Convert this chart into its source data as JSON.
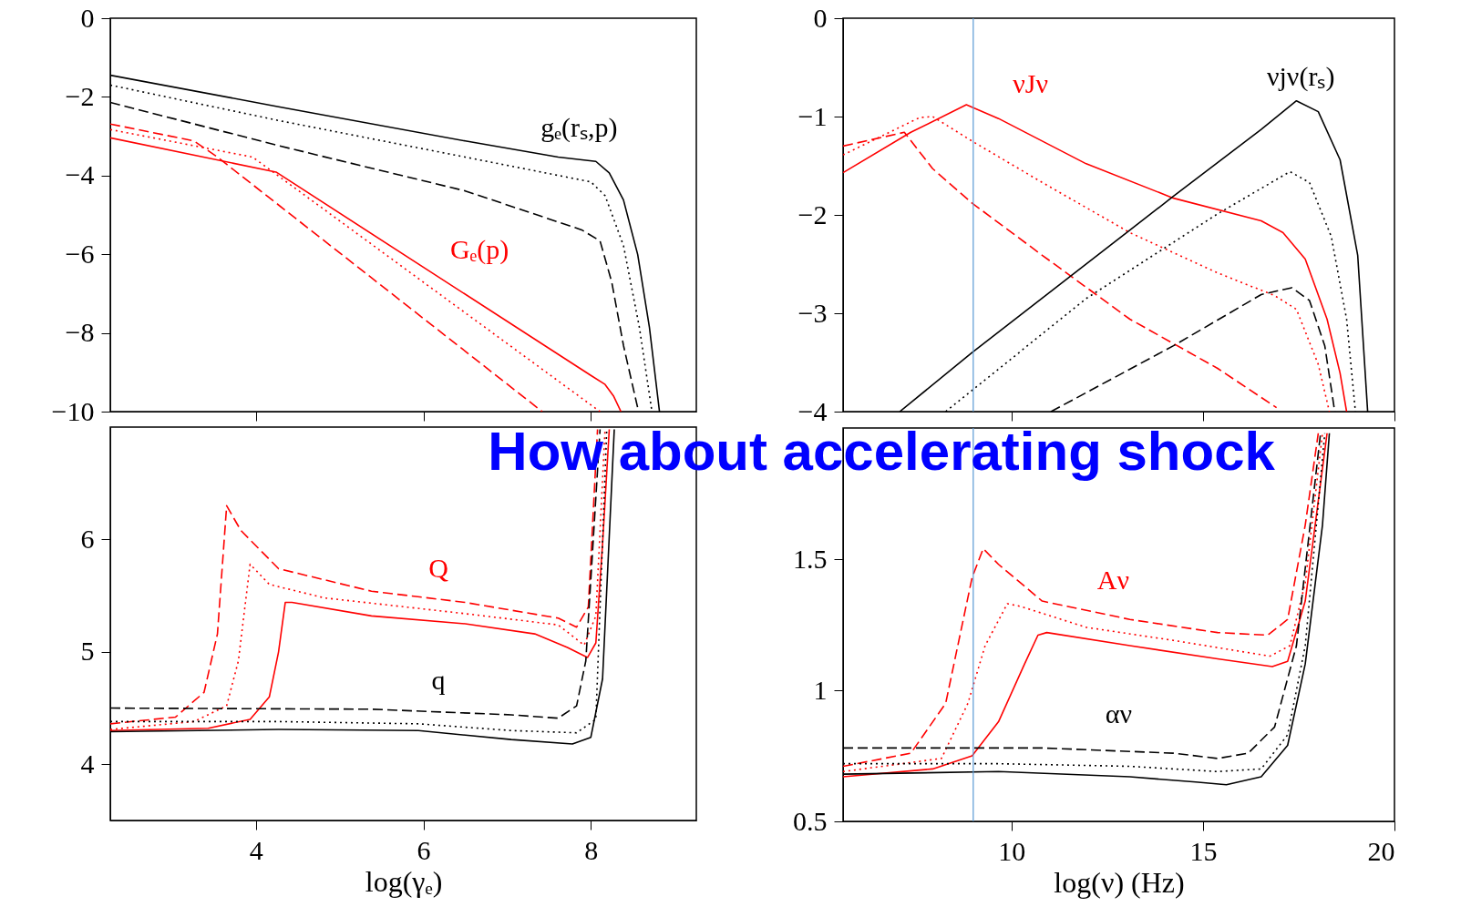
{
  "chart_data": [
    {
      "type": "line",
      "xlim": [
        2.26,
        9.26
      ],
      "xticks": [
        4,
        6,
        8
      ],
      "ylim": [
        -10,
        0
      ],
      "yticks": [
        0,
        -2,
        -4,
        -6,
        -8,
        -10
      ],
      "tick_labels": "y",
      "grid": false,
      "series": [
        {
          "name": "gₑ(rₛ,p)",
          "color": "#000000",
          "line_style": "solid",
          "x": [
            2.26,
            4.27,
            6.5,
            7.61,
            8.06,
            8.22,
            8.39,
            8.56,
            8.7,
            8.82
          ],
          "values": [
            -1.45,
            -2.25,
            -3.12,
            -3.53,
            -3.64,
            -3.93,
            -4.62,
            -6.01,
            -7.86,
            -10
          ]
        },
        {
          "color": "#000000",
          "line_style": "dotted",
          "x": [
            2.26,
            4.27,
            6.5,
            8.0,
            8.17,
            8.39,
            8.58,
            8.73
          ],
          "values": [
            -1.7,
            -2.6,
            -3.53,
            -4.16,
            -4.51,
            -5.78,
            -7.86,
            -10
          ]
        },
        {
          "color": "#000000",
          "line_style": "dashed",
          "x": [
            2.26,
            4.27,
            6.5,
            7.89,
            8.11,
            8.25,
            8.39,
            8.57
          ],
          "values": [
            -2.14,
            -3.24,
            -4.39,
            -5.38,
            -5.66,
            -6.71,
            -8.32,
            -10
          ]
        },
        {
          "name": "Gₑ(p)",
          "color": "#ff0000",
          "line_style": "solid",
          "x": [
            2.26,
            4.24,
            8.0,
            8.17,
            8.27,
            8.36
          ],
          "values": [
            -3.04,
            -3.91,
            -9.08,
            -9.31,
            -9.6,
            -10
          ]
        },
        {
          "color": "#ff0000",
          "line_style": "dotted",
          "x": [
            2.26,
            3.96,
            8.11
          ],
          "values": [
            -2.83,
            -3.53,
            -10
          ]
        },
        {
          "color": "#ff0000",
          "line_style": "dashed",
          "x": [
            2.26,
            3.26,
            3.54,
            7.42
          ],
          "values": [
            -2.69,
            -3.12,
            -3.53,
            -10
          ]
        }
      ]
    },
    {
      "type": "line",
      "xlim": [
        5.6,
        20
      ],
      "xticks": [
        10,
        15,
        20
      ],
      "ylim": [
        -4,
        0
      ],
      "yticks": [
        0,
        -1,
        -2,
        -3,
        -4
      ],
      "tick_labels": "y",
      "grid": false,
      "series": [
        {
          "name": "νJν",
          "color": "#ff0000",
          "line_style": "solid",
          "x": [
            5.6,
            7.37,
            8.82,
            9.66,
            11.95,
            14.23,
            16.52,
            17.09,
            17.67,
            18.24,
            18.58,
            18.75
          ],
          "values": [
            -1.57,
            -1.16,
            -0.88,
            -1.02,
            -1.48,
            -1.83,
            -2.06,
            -2.18,
            -2.45,
            -3.06,
            -3.61,
            -4
          ]
        },
        {
          "color": "#ff0000",
          "line_style": "dotted",
          "x": [
            5.6,
            7.6,
            7.94,
            8.97,
            10.8,
            13.09,
            15.38,
            16.87,
            17.44,
            18.01,
            18.3
          ],
          "values": [
            -1.39,
            -1.01,
            -1.0,
            -1.25,
            -1.67,
            -2.18,
            -2.59,
            -2.82,
            -2.96,
            -3.52,
            -4
          ]
        },
        {
          "color": "#ff0000",
          "line_style": "dashed",
          "x": [
            5.6,
            7.2,
            7.94,
            8.97,
            10.8,
            13.09,
            15.38,
            16.92
          ],
          "values": [
            -1.3,
            -1.16,
            -1.53,
            -1.88,
            -2.41,
            -3.06,
            -3.56,
            -3.96
          ]
        },
        {
          "name": "νjν(rₛ)",
          "color": "#000000",
          "line_style": "solid",
          "x": [
            7.08,
            8.97,
            14.23,
            16.52,
            17.44,
            18.01,
            18.58,
            19.04,
            19.3
          ],
          "values": [
            -4,
            -3.4,
            -1.81,
            -1.13,
            -0.84,
            -0.95,
            -1.44,
            -2.41,
            -4
          ]
        },
        {
          "color": "#000000",
          "line_style": "dotted",
          "x": [
            8.28,
            11.95,
            15.38,
            17.27,
            17.78,
            18.35,
            18.75,
            18.98
          ],
          "values": [
            -4,
            -2.85,
            -1.99,
            -1.56,
            -1.67,
            -2.22,
            -3.06,
            -4
          ]
        },
        {
          "color": "#000000",
          "line_style": "dashed",
          "x": [
            11.03,
            14.23,
            16.52,
            17.32,
            17.78,
            18.18,
            18.44
          ],
          "values": [
            -4,
            -3.33,
            -2.81,
            -2.74,
            -2.87,
            -3.33,
            -4
          ]
        }
      ],
      "ref_lines": [
        {
          "axis": "x",
          "value": 9,
          "color": "#5b9bd5"
        }
      ]
    },
    {
      "type": "line",
      "xlim": [
        2.26,
        9.26
      ],
      "xticks": [
        4,
        6,
        8
      ],
      "ylim": [
        3.5,
        7
      ],
      "yticks": [
        4,
        5,
        6
      ],
      "xlabel": "log(γₑ)",
      "grid": false,
      "series": [
        {
          "name": "Q",
          "color": "#ff0000",
          "line_style": "solid",
          "x": [
            2.26,
            3.43,
            3.93,
            4.16,
            4.27,
            4.35,
            4.43,
            5.38,
            6.5,
            7.33,
            7.72,
            7.96,
            8.06,
            8.14,
            8.22
          ],
          "values": [
            4.3,
            4.32,
            4.4,
            4.6,
            5.0,
            5.44,
            5.44,
            5.32,
            5.25,
            5.16,
            5.04,
            4.95,
            5.08,
            5.96,
            6.98
          ]
        },
        {
          "color": "#ff0000",
          "line_style": "dotted",
          "x": [
            2.26,
            3.26,
            3.65,
            3.79,
            3.93,
            4.16,
            4.82,
            6.5,
            7.61,
            7.92,
            8.06,
            8.17
          ],
          "values": [
            4.31,
            4.38,
            4.52,
            4.92,
            5.78,
            5.6,
            5.48,
            5.34,
            5.24,
            5.06,
            5.32,
            6.98
          ]
        },
        {
          "color": "#ff0000",
          "line_style": "dashed",
          "x": [
            2.26,
            3.04,
            3.38,
            3.54,
            3.65,
            3.82,
            4.27,
            5.38,
            6.5,
            7.61,
            7.83,
            7.97,
            8.08
          ],
          "values": [
            4.36,
            4.42,
            4.64,
            5.16,
            6.3,
            6.08,
            5.74,
            5.54,
            5.44,
            5.3,
            5.22,
            5.4,
            6.98
          ]
        },
        {
          "name": "q",
          "color": "#000000",
          "line_style": "solid",
          "x": [
            2.26,
            4.27,
            5.94,
            7.05,
            7.78,
            8.0,
            8.14,
            8.28
          ],
          "values": [
            4.29,
            4.31,
            4.3,
            4.22,
            4.18,
            4.24,
            4.76,
            6.98
          ]
        },
        {
          "color": "#000000",
          "line_style": "dotted",
          "x": [
            2.26,
            4.27,
            5.94,
            7.05,
            7.83,
            8.06,
            8.19
          ],
          "values": [
            4.38,
            4.38,
            4.36,
            4.3,
            4.28,
            4.4,
            6.98
          ]
        },
        {
          "color": "#000000",
          "line_style": "dashed",
          "x": [
            2.26,
            5.38,
            7.05,
            7.61,
            7.83,
            7.94,
            8.11
          ],
          "values": [
            4.5,
            4.49,
            4.44,
            4.41,
            4.52,
            4.92,
            6.98
          ]
        }
      ]
    },
    {
      "type": "line",
      "xlim": [
        5.6,
        20
      ],
      "xticks": [
        10,
        15,
        20
      ],
      "ylim": [
        0.5,
        2
      ],
      "yticks": [
        0.5,
        1,
        1.5
      ],
      "xlabel": "log(ν) (Hz)",
      "grid": false,
      "series": [
        {
          "name": "Aν",
          "color": "#ff0000",
          "line_style": "solid",
          "x": [
            5.6,
            7.94,
            8.97,
            9.66,
            10.34,
            10.69,
            10.92,
            13.09,
            15.38,
            16.81,
            17.21,
            17.67,
            18.24
          ],
          "values": [
            0.67,
            0.7,
            0.75,
            0.88,
            1.1,
            1.21,
            1.22,
            1.17,
            1.12,
            1.09,
            1.11,
            1.34,
            1.98
          ]
        },
        {
          "color": "#ff0000",
          "line_style": "dotted",
          "x": [
            5.6,
            8.17,
            8.86,
            9.31,
            9.89,
            10.23,
            11.95,
            14.23,
            16.75,
            17.27,
            17.67,
            18.12
          ],
          "values": [
            0.69,
            0.74,
            0.95,
            1.17,
            1.33,
            1.32,
            1.24,
            1.19,
            1.13,
            1.17,
            1.41,
            1.98
          ]
        },
        {
          "color": "#ff0000",
          "line_style": "dashed",
          "x": [
            5.6,
            7.37,
            8.28,
            8.97,
            9.26,
            9.66,
            10.8,
            13.09,
            15.38,
            16.69,
            17.21,
            17.67,
            18.01
          ],
          "values": [
            0.71,
            0.76,
            0.95,
            1.43,
            1.54,
            1.48,
            1.34,
            1.27,
            1.22,
            1.21,
            1.27,
            1.63,
            1.98
          ]
        },
        {
          "name": "αν",
          "color": "#000000",
          "line_style": "solid",
          "x": [
            5.6,
            9.66,
            13.09,
            14.81,
            15.61,
            16.52,
            17.21,
            17.67,
            18.12,
            18.3
          ],
          "values": [
            0.68,
            0.69,
            0.67,
            0.65,
            0.64,
            0.67,
            0.79,
            1.1,
            1.63,
            1.98
          ]
        },
        {
          "color": "#000000",
          "line_style": "dotted",
          "x": [
            5.6,
            9.66,
            13.09,
            15.38,
            16.52,
            17.21,
            17.67,
            18.18
          ],
          "values": [
            0.72,
            0.72,
            0.71,
            0.69,
            0.7,
            0.83,
            1.17,
            1.98
          ]
        },
        {
          "color": "#000000",
          "line_style": "dashed",
          "x": [
            5.6,
            10.8,
            14.23,
            15.38,
            16.18,
            16.87,
            17.44,
            18.07
          ],
          "values": [
            0.78,
            0.78,
            0.76,
            0.74,
            0.76,
            0.86,
            1.17,
            1.98
          ]
        }
      ],
      "ref_lines": [
        {
          "axis": "x",
          "value": 9,
          "color": "#5b9bd5"
        }
      ],
      "annotations": [
        "How about accelerating shock"
      ]
    }
  ]
}
